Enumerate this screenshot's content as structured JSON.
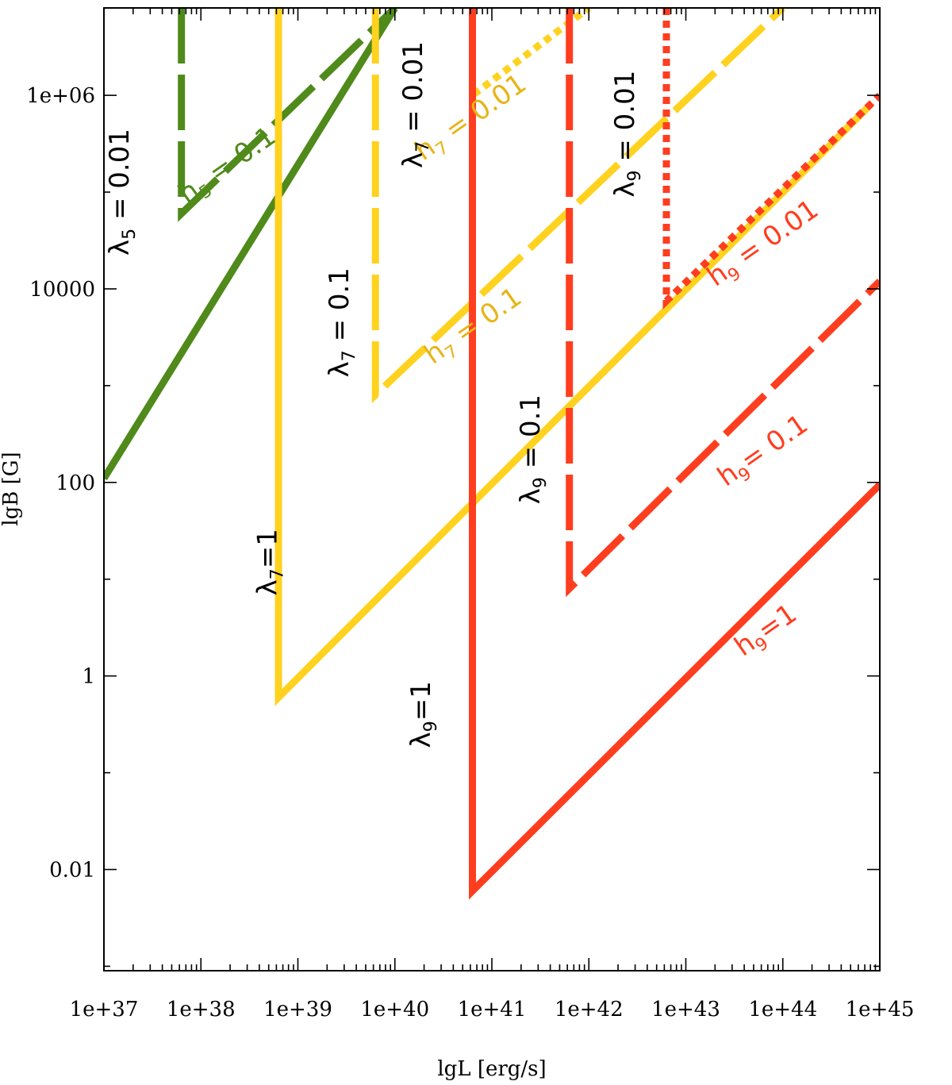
{
  "chart_data": {
    "type": "line",
    "title": "",
    "xlabel": "lgL [erg/s]",
    "ylabel": "lgB [G]",
    "x_scale": "log",
    "y_scale": "log",
    "xlim": [
      1e+37,
      1e+45
    ],
    "ylim": [
      0.0009,
      8000000
    ],
    "grid": false,
    "legend": "none",
    "x_ticks": [
      {
        "value": 1e+37,
        "label": "1e+37"
      },
      {
        "value": 1e+38,
        "label": "1e+38"
      },
      {
        "value": 1e+39,
        "label": "1e+39"
      },
      {
        "value": 1e+40,
        "label": "1e+40"
      },
      {
        "value": 1e+41,
        "label": "1e+41"
      },
      {
        "value": 1e+42,
        "label": "1e+42"
      },
      {
        "value": 1e+43,
        "label": "1e+43"
      },
      {
        "value": 1e+44,
        "label": "1e+44"
      },
      {
        "value": 1e+45,
        "label": "1e+45"
      }
    ],
    "y_ticks": [
      {
        "value": 0.01,
        "label": "0.01"
      },
      {
        "value": 1,
        "label": "1"
      },
      {
        "value": 100,
        "label": "100"
      },
      {
        "value": 10000,
        "label": "10000"
      },
      {
        "value": 1000000,
        "label": "1e+06"
      }
    ],
    "series": [
      {
        "color": "#4f8a1a",
        "dash": "solid",
        "x": [
          1e+37,
          1e+40
        ],
        "y": [
          110,
          8000000
        ]
      },
      {
        "color": "#4f8a1a",
        "dash": "longdash",
        "x": [
          6.3e+37,
          6.3e+37,
          1e+40
        ],
        "y": [
          8000000,
          60000,
          8000000
        ]
      },
      {
        "color": "#ffd21f",
        "dash": "solid",
        "x": [
          6.3e+38,
          6.3e+38,
          8e+44
        ],
        "y": [
          8000000,
          0.6,
          800000
        ]
      },
      {
        "color": "#ffd21f",
        "dash": "longdash",
        "x": [
          6.3e+39,
          6.3e+39,
          1e+44
        ],
        "y": [
          8000000,
          800,
          8000000
        ]
      },
      {
        "color": "#ffd21f",
        "dash": "dotted",
        "x": [
          6.3e+40,
          6.3e+40,
          1e+42
        ],
        "y": [
          8000000,
          1000000,
          8000000
        ]
      },
      {
        "color": "#ff3d1f",
        "dash": "solid",
        "x": [
          6.3e+40,
          6.3e+40,
          1e+45
        ],
        "y": [
          8000000,
          0.006,
          95
        ]
      },
      {
        "color": "#ff3d1f",
        "dash": "longdash",
        "x": [
          6.3e+41,
          6.3e+41,
          1e+45
        ],
        "y": [
          8000000,
          8,
          12000
        ]
      },
      {
        "color": "#ff3d1f",
        "dash": "dotted",
        "x": [
          6.3e+42,
          6.3e+42,
          1e+45
        ],
        "y": [
          8000000,
          7500,
          1000000
        ]
      }
    ],
    "annotations": [
      {
        "base": "λ",
        "sub": "5",
        "rest": " = 0.01",
        "x": 1.8e+37,
        "y": 100000,
        "rotate": -90,
        "color": "#000000"
      },
      {
        "base": "h",
        "sub": "5",
        "rest": " = 0.1",
        "x": 2.1e+38,
        "y": 160000,
        "rotate": -35,
        "color": "#4f8a1a"
      },
      {
        "base": "λ",
        "sub": "7",
        "rest": "=1",
        "x": 6e+38,
        "y": 15,
        "rotate": -90,
        "color": "#000000"
      },
      {
        "base": "λ",
        "sub": "7",
        "rest": " = 0.1",
        "x": 3.3e+39,
        "y": 4500,
        "rotate": -90,
        "color": "#000000"
      },
      {
        "base": "h",
        "sub": "7",
        "rest": " = 0.01",
        "x": 6.8e+40,
        "y": 500000,
        "rotate": -35,
        "color": "#e8b416"
      },
      {
        "base": "λ",
        "sub": "7",
        "rest": " = 0.01",
        "x": 1.9e+40,
        "y": 800000,
        "rotate": -90,
        "color": "#000000"
      },
      {
        "base": "h",
        "sub": "7",
        "rest": " = 0.1",
        "x": 7.2e+40,
        "y": 3500,
        "rotate": -35,
        "color": "#e8b416"
      },
      {
        "base": "λ",
        "sub": "9",
        "rest": "=1",
        "x": 2.3e+40,
        "y": 0.4,
        "rotate": -90,
        "color": "#000000"
      },
      {
        "base": "λ",
        "sub": "9",
        "rest": " = 0.1",
        "x": 3.1e+41,
        "y": 220,
        "rotate": -90,
        "color": "#000000"
      },
      {
        "base": "λ",
        "sub": "9",
        "rest": " = 0.01",
        "x": 2.9e+42,
        "y": 400000,
        "rotate": -90,
        "color": "#000000"
      },
      {
        "base": "h",
        "sub": "9",
        "rest": " = 0.01",
        "x": 7e+43,
        "y": 25000,
        "rotate": -35,
        "color": "#ff3d1f"
      },
      {
        "base": "h",
        "sub": "9",
        "rest": "= 0.1",
        "x": 7e+43,
        "y": 180,
        "rotate": -35,
        "color": "#ff3d1f"
      },
      {
        "base": "h",
        "sub": "9",
        "rest": "=1",
        "x": 7.5e+43,
        "y": 2.5,
        "rotate": -35,
        "color": "#ff3d1f"
      }
    ]
  }
}
